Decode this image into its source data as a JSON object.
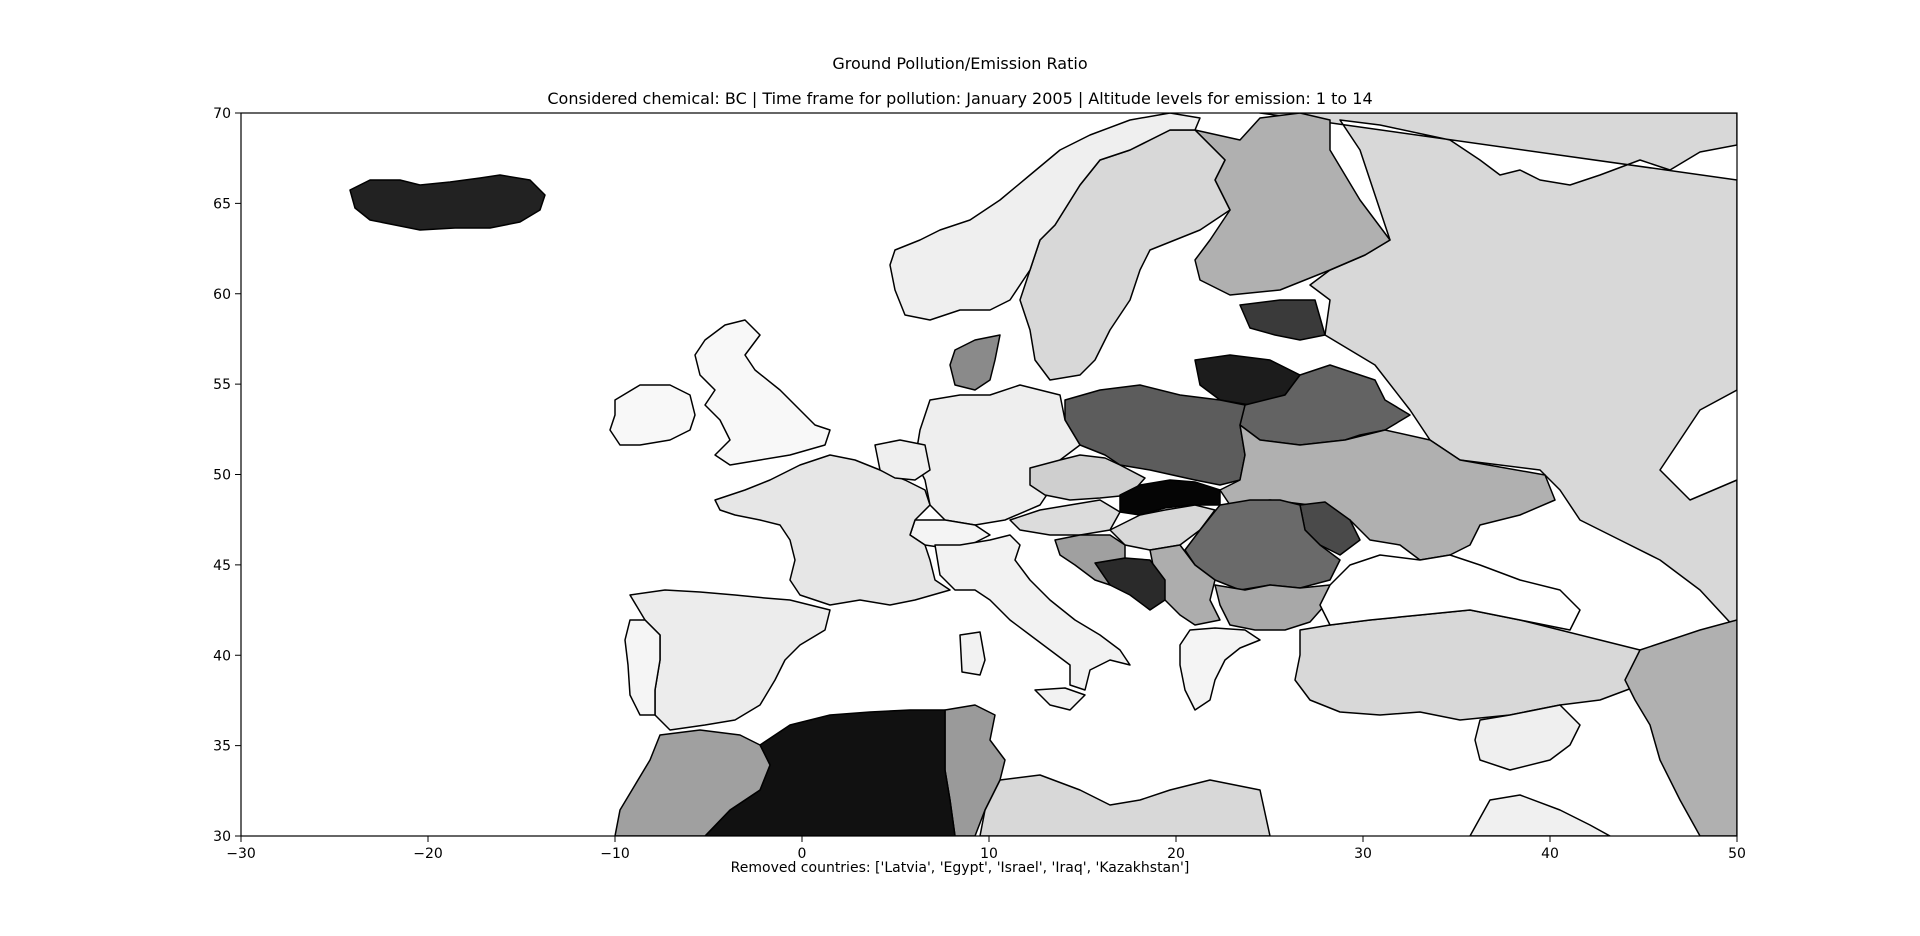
{
  "title": "Ground Pollution/Emission Ratio",
  "subtitle": "Considered chemical: BC | Time frame for pollution: January 2005 | Altitude levels for emission: 1 to 14",
  "footer_note": "Removed countries: ['Latvia', 'Egypt', 'Israel', 'Iraq', 'Kazakhstan']",
  "chart_data": {
    "type": "map",
    "projection": "plate carree (lon/lat)",
    "xlim": [
      -30,
      50
    ],
    "ylim": [
      30,
      70
    ],
    "x_ticks": [
      -30,
      -20,
      -10,
      0,
      10,
      20,
      30,
      40,
      50
    ],
    "y_ticks": [
      30,
      35,
      40,
      45,
      50,
      55,
      60,
      65,
      70
    ],
    "grayscale_note": "darker = higher ratio",
    "regions": [
      {
        "name": "Iceland",
        "shade": "#222222"
      },
      {
        "name": "Algeria",
        "shade": "#111111"
      },
      {
        "name": "Slovakia",
        "shade": "#050505"
      },
      {
        "name": "Lithuania",
        "shade": "#1c1c1c"
      },
      {
        "name": "Bosnia and Herzegovina",
        "shade": "#2a2a2a"
      },
      {
        "name": "Estonia",
        "shade": "#3a3a3a"
      },
      {
        "name": "Moldova",
        "shade": "#4a4a4a"
      },
      {
        "name": "Poland",
        "shade": "#5c5c5c"
      },
      {
        "name": "Belarus",
        "shade": "#636363"
      },
      {
        "name": "Romania",
        "shade": "#6a6a6a"
      },
      {
        "name": "Denmark",
        "shade": "#8a8a8a"
      },
      {
        "name": "Tunisia",
        "shade": "#9a9a9a"
      },
      {
        "name": "Morocco",
        "shade": "#a0a0a0"
      },
      {
        "name": "Bulgaria",
        "shade": "#a8a8a8"
      },
      {
        "name": "Serbia",
        "shade": "#adadad"
      },
      {
        "name": "Ukraine",
        "shade": "#b0b0b0"
      },
      {
        "name": "Finland",
        "shade": "#b0b0b0"
      },
      {
        "name": "Iran",
        "shade": "#b0b0b0"
      },
      {
        "name": "Croatia",
        "shade": "#a0a0a0"
      },
      {
        "name": "Czechia",
        "shade": "#cfcfcf"
      },
      {
        "name": "Hungary",
        "shade": "#d8d8d8"
      },
      {
        "name": "Sweden",
        "shade": "#d8d8d8"
      },
      {
        "name": "Russia",
        "shade": "#d8d8d8"
      },
      {
        "name": "Turkey",
        "shade": "#d8d8d8"
      },
      {
        "name": "Austria",
        "shade": "#dcdcdc"
      },
      {
        "name": "Libya",
        "shade": "#d8d8d8"
      },
      {
        "name": "France",
        "shade": "#e6e6e6"
      },
      {
        "name": "Spain",
        "shade": "#ececec"
      },
      {
        "name": "Germany",
        "shade": "#eeeeee"
      },
      {
        "name": "Norway",
        "shade": "#efefef"
      },
      {
        "name": "Italy",
        "shade": "#f2f2f2"
      },
      {
        "name": "Switzerland",
        "shade": "#f4f4f4"
      },
      {
        "name": "United Kingdom",
        "shade": "#f8f8f8"
      },
      {
        "name": "Ireland",
        "shade": "#f8f8f8"
      },
      {
        "name": "Portugal",
        "shade": "#f5f5f5"
      },
      {
        "name": "Greece",
        "shade": "#f4f4f4"
      },
      {
        "name": "Syria",
        "shade": "#efefef"
      },
      {
        "name": "Saudi Arabia",
        "shade": "#f0f0f0"
      }
    ]
  }
}
